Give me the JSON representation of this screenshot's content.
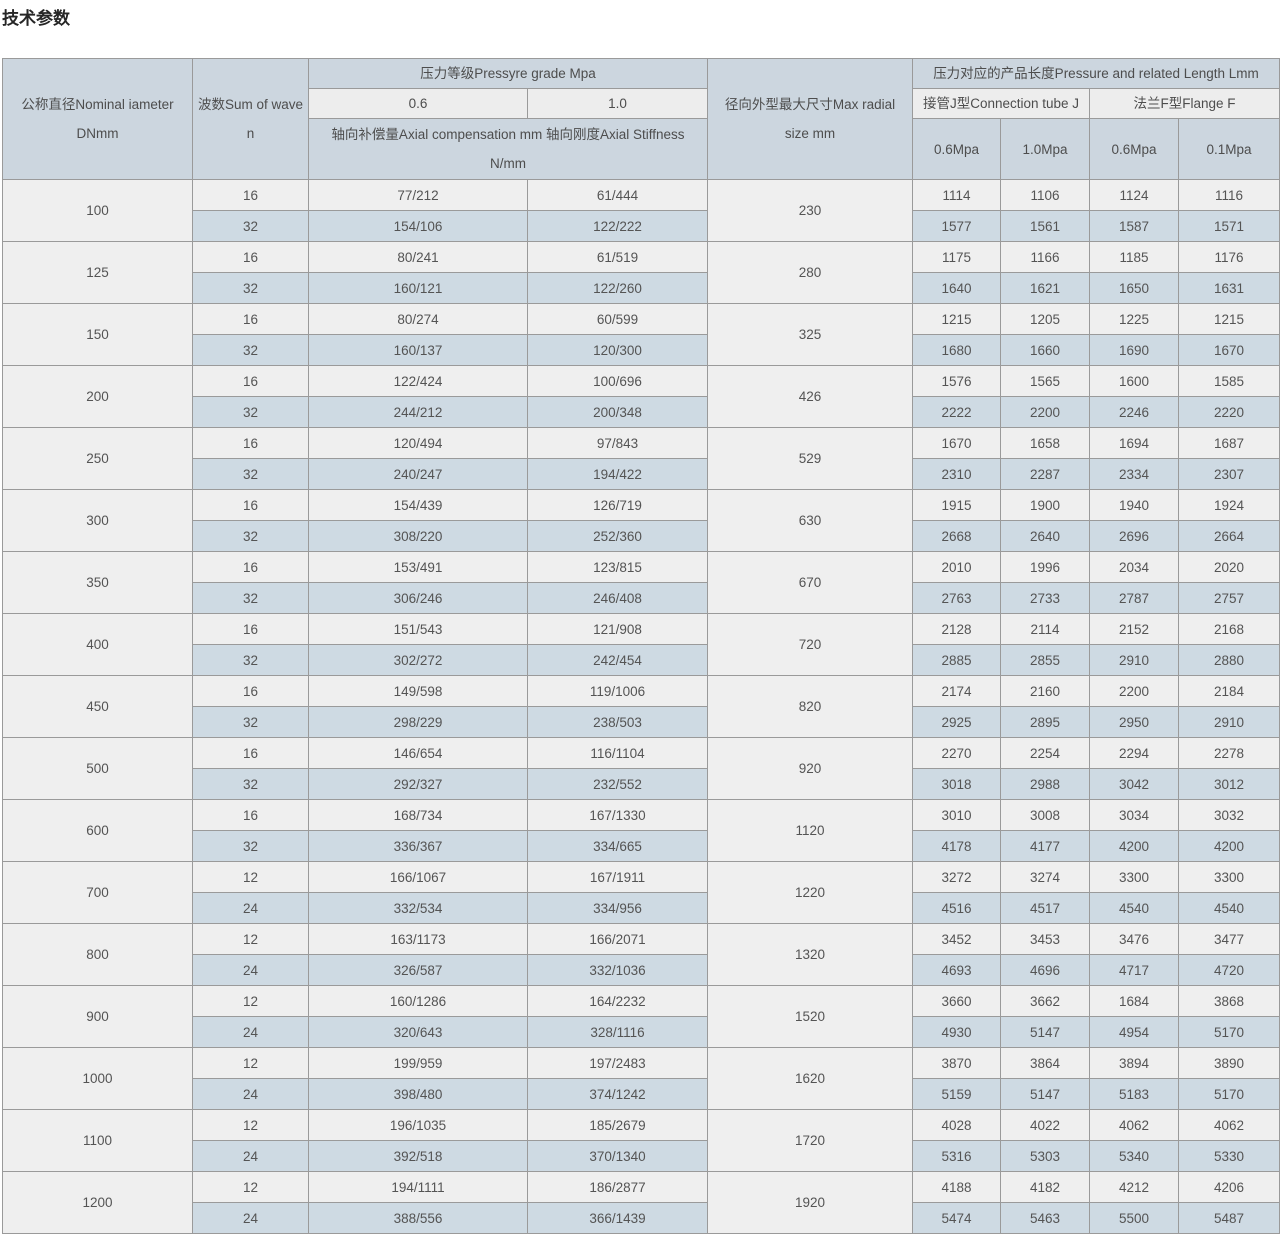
{
  "page_title": "技术参数",
  "table": {
    "headers": {
      "col_dn": "公称直径Nominal iameter DNmm",
      "col_wave": "波数Sum of wave n",
      "grp_pressure": "压力等级Pressyre grade Mpa",
      "sub_06": "0.6",
      "sub_10": "1.0",
      "axial_note": "轴向补偿量Axial compensation mm 轴向刚度Axial Stiffness N/mm",
      "col_radial": "径向外型最大尺寸Max radial size mm",
      "grp_length": "压力对应的产品长度Pressure and related Length Lmm",
      "grp_tube": "接管J型Connection tube J",
      "grp_flange": "法兰F型Flange F",
      "tube_06": "0.6Mpa",
      "tube_10": "1.0Mpa",
      "flange_06": "0.6Mpa",
      "flange_01": "0.1Mpa"
    },
    "rows": [
      {
        "dn": "100",
        "radial": "230",
        "sub": [
          {
            "wave": "16",
            "c06": "77/212",
            "c10": "61/444",
            "j06": "1114",
            "j10": "1106",
            "f06": "1124",
            "f01": "1116"
          },
          {
            "wave": "32",
            "c06": "154/106",
            "c10": "122/222",
            "j06": "1577",
            "j10": "1561",
            "f06": "1587",
            "f01": "1571"
          }
        ]
      },
      {
        "dn": "125",
        "radial": "280",
        "sub": [
          {
            "wave": "16",
            "c06": "80/241",
            "c10": "61/519",
            "j06": "1175",
            "j10": "1166",
            "f06": "1185",
            "f01": "1176"
          },
          {
            "wave": "32",
            "c06": "160/121",
            "c10": "122/260",
            "j06": "1640",
            "j10": "1621",
            "f06": "1650",
            "f01": "1631"
          }
        ]
      },
      {
        "dn": "150",
        "radial": "325",
        "sub": [
          {
            "wave": "16",
            "c06": "80/274",
            "c10": "60/599",
            "j06": "1215",
            "j10": "1205",
            "f06": "1225",
            "f01": "1215"
          },
          {
            "wave": "32",
            "c06": "160/137",
            "c10": "120/300",
            "j06": "1680",
            "j10": "1660",
            "f06": "1690",
            "f01": "1670"
          }
        ]
      },
      {
        "dn": "200",
        "radial": "426",
        "sub": [
          {
            "wave": "16",
            "c06": "122/424",
            "c10": "100/696",
            "j06": "1576",
            "j10": "1565",
            "f06": "1600",
            "f01": "1585"
          },
          {
            "wave": "32",
            "c06": "244/212",
            "c10": "200/348",
            "j06": "2222",
            "j10": "2200",
            "f06": "2246",
            "f01": "2220"
          }
        ]
      },
      {
        "dn": "250",
        "radial": "529",
        "sub": [
          {
            "wave": "16",
            "c06": "120/494",
            "c10": "97/843",
            "j06": "1670",
            "j10": "1658",
            "f06": "1694",
            "f01": "1687"
          },
          {
            "wave": "32",
            "c06": "240/247",
            "c10": "194/422",
            "j06": "2310",
            "j10": "2287",
            "f06": "2334",
            "f01": "2307"
          }
        ]
      },
      {
        "dn": "300",
        "radial": "630",
        "sub": [
          {
            "wave": "16",
            "c06": "154/439",
            "c10": "126/719",
            "j06": "1915",
            "j10": "1900",
            "f06": "1940",
            "f01": "1924"
          },
          {
            "wave": "32",
            "c06": "308/220",
            "c10": "252/360",
            "j06": "2668",
            "j10": "2640",
            "f06": "2696",
            "f01": "2664"
          }
        ]
      },
      {
        "dn": "350",
        "radial": "670",
        "sub": [
          {
            "wave": "16",
            "c06": "153/491",
            "c10": "123/815",
            "j06": "2010",
            "j10": "1996",
            "f06": "2034",
            "f01": "2020"
          },
          {
            "wave": "32",
            "c06": "306/246",
            "c10": "246/408",
            "j06": "2763",
            "j10": "2733",
            "f06": "2787",
            "f01": "2757"
          }
        ]
      },
      {
        "dn": "400",
        "radial": "720",
        "sub": [
          {
            "wave": "16",
            "c06": "151/543",
            "c10": "121/908",
            "j06": "2128",
            "j10": "2114",
            "f06": "2152",
            "f01": "2168"
          },
          {
            "wave": "32",
            "c06": "302/272",
            "c10": "242/454",
            "j06": "2885",
            "j10": "2855",
            "f06": "2910",
            "f01": "2880"
          }
        ]
      },
      {
        "dn": "450",
        "radial": "820",
        "sub": [
          {
            "wave": "16",
            "c06": "149/598",
            "c10": "119/1006",
            "j06": "2174",
            "j10": "2160",
            "f06": "2200",
            "f01": "2184"
          },
          {
            "wave": "32",
            "c06": "298/229",
            "c10": "238/503",
            "j06": "2925",
            "j10": "2895",
            "f06": "2950",
            "f01": "2910"
          }
        ]
      },
      {
        "dn": "500",
        "radial": "920",
        "sub": [
          {
            "wave": "16",
            "c06": "146/654",
            "c10": "116/1104",
            "j06": "2270",
            "j10": "2254",
            "f06": "2294",
            "f01": "2278"
          },
          {
            "wave": "32",
            "c06": "292/327",
            "c10": "232/552",
            "j06": "3018",
            "j10": "2988",
            "f06": "3042",
            "f01": "3012"
          }
        ]
      },
      {
        "dn": "600",
        "radial": "1120",
        "sub": [
          {
            "wave": "16",
            "c06": "168/734",
            "c10": "167/1330",
            "j06": "3010",
            "j10": "3008",
            "f06": "3034",
            "f01": "3032"
          },
          {
            "wave": "32",
            "c06": "336/367",
            "c10": "334/665",
            "j06": "4178",
            "j10": "4177",
            "f06": "4200",
            "f01": "4200"
          }
        ]
      },
      {
        "dn": "700",
        "radial": "1220",
        "sub": [
          {
            "wave": "12",
            "c06": "166/1067",
            "c10": "167/1911",
            "j06": "3272",
            "j10": "3274",
            "f06": "3300",
            "f01": "3300"
          },
          {
            "wave": "24",
            "c06": "332/534",
            "c10": "334/956",
            "j06": "4516",
            "j10": "4517",
            "f06": "4540",
            "f01": "4540"
          }
        ]
      },
      {
        "dn": "800",
        "radial": "1320",
        "sub": [
          {
            "wave": "12",
            "c06": "163/1173",
            "c10": "166/2071",
            "j06": "3452",
            "j10": "3453",
            "f06": "3476",
            "f01": "3477"
          },
          {
            "wave": "24",
            "c06": "326/587",
            "c10": "332/1036",
            "j06": "4693",
            "j10": "4696",
            "f06": "4717",
            "f01": "4720"
          }
        ]
      },
      {
        "dn": "900",
        "radial": "1520",
        "sub": [
          {
            "wave": "12",
            "c06": "160/1286",
            "c10": "164/2232",
            "j06": "3660",
            "j10": "3662",
            "f06": "1684",
            "f01": "3868"
          },
          {
            "wave": "24",
            "c06": "320/643",
            "c10": "328/1116",
            "j06": "4930",
            "j10": "5147",
            "f06": "4954",
            "f01": "5170"
          }
        ]
      },
      {
        "dn": "1000",
        "radial": "1620",
        "sub": [
          {
            "wave": "12",
            "c06": "199/959",
            "c10": "197/2483",
            "j06": "3870",
            "j10": "3864",
            "f06": "3894",
            "f01": "3890"
          },
          {
            "wave": "24",
            "c06": "398/480",
            "c10": "374/1242",
            "j06": "5159",
            "j10": "5147",
            "f06": "5183",
            "f01": "5170"
          }
        ]
      },
      {
        "dn": "1100",
        "radial": "1720",
        "sub": [
          {
            "wave": "12",
            "c06": "196/1035",
            "c10": "185/2679",
            "j06": "4028",
            "j10": "4022",
            "f06": "4062",
            "f01": "4062"
          },
          {
            "wave": "24",
            "c06": "392/518",
            "c10": "370/1340",
            "j06": "5316",
            "j10": "5303",
            "f06": "5340",
            "f01": "5330"
          }
        ]
      },
      {
        "dn": "1200",
        "radial": "1920",
        "sub": [
          {
            "wave": "12",
            "c06": "194/1111",
            "c10": "186/2877",
            "j06": "4188",
            "j10": "4182",
            "f06": "4212",
            "f01": "4206"
          },
          {
            "wave": "24",
            "c06": "388/556",
            "c10": "366/1439",
            "j06": "5474",
            "j10": "5463",
            "f06": "5500",
            "f01": "5487"
          }
        ]
      }
    ]
  },
  "colors": {
    "header_blue": "#ccd6df",
    "header_light": "#ededed",
    "row_light": "#efefef",
    "row_blue": "#cedae3",
    "border": "#9a9a9a",
    "text": "#545454",
    "title_text": "#262626"
  }
}
